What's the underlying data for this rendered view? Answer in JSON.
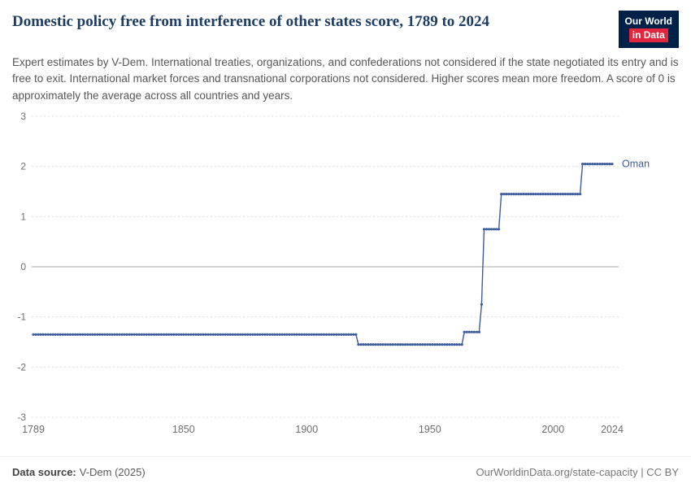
{
  "header": {
    "title": "Domestic policy free from interference of other states score, 1789 to 2024",
    "subtitle": "Expert estimates by V-Dem. International treaties, organizations, and confederations not considered if the state negotiated its entry and is free to exit. International market forces and transnational corporations not considered. Higher scores mean more freedom. A score of 0 is approximately the average across all countries and years.",
    "logo": {
      "line1": "Our World",
      "line2": "in Data",
      "bg_color": "#002147",
      "accent_color": "#e2263d"
    }
  },
  "footer": {
    "source_label": "Data source:",
    "source_value": "V-Dem (2025)",
    "credit": "OurWorldinData.org/state-capacity | CC BY"
  },
  "chart_data": {
    "type": "line",
    "title": "Domestic policy free from interference of other states score, 1789 to 2024",
    "entity": "Oman",
    "line_color": "#3d5c9c",
    "grid": true,
    "legend_position": "end-of-line label",
    "xlim": [
      1789,
      2024
    ],
    "ylim": [
      -3,
      3
    ],
    "x_ticks": [
      1789,
      1850,
      1900,
      1950,
      2000,
      2024
    ],
    "y_ticks": [
      -3,
      -2,
      -1,
      0,
      1,
      2,
      3
    ],
    "series": [
      {
        "name": "Oman",
        "segments": [
          {
            "start_year": 1789,
            "end_year": 1920,
            "value": -1.35
          },
          {
            "start_year": 1921,
            "end_year": 1963,
            "value": -1.55
          },
          {
            "start_year": 1964,
            "end_year": 1970,
            "value": -1.3
          },
          {
            "start_year": 1971,
            "end_year": 1971,
            "value": -0.75
          },
          {
            "start_year": 1972,
            "end_year": 1978,
            "value": 0.75
          },
          {
            "start_year": 1979,
            "end_year": 2011,
            "value": 1.45
          },
          {
            "start_year": 2012,
            "end_year": 2024,
            "value": 2.05
          }
        ]
      }
    ]
  }
}
